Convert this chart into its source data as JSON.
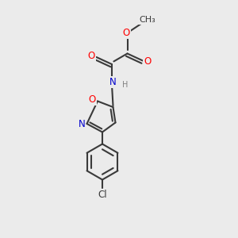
{
  "background_color": "#ebebeb",
  "bond_color": "#3a3a3a",
  "bond_width": 1.5,
  "atom_colors": {
    "O": "#ff0000",
    "N": "#0000cc",
    "Cl": "#3a3a3a",
    "C": "#3a3a3a",
    "H": "#808080"
  },
  "font_size_atoms": 8.5,
  "font_size_small": 7.0,
  "font_size_ch3": 8.0
}
